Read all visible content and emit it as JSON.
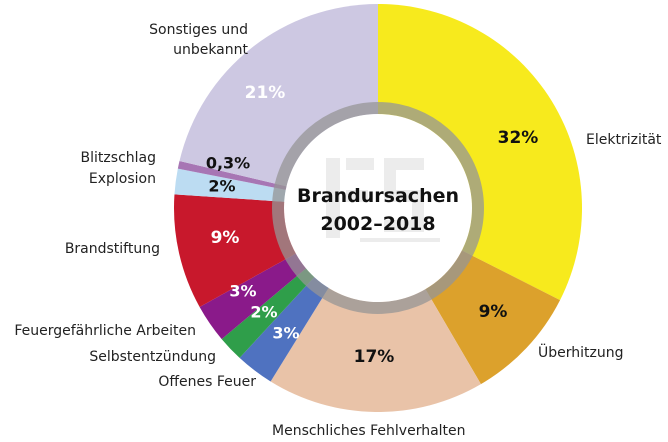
{
  "chart_data": {
    "type": "pie",
    "style": "donut",
    "title": "Brandursachen",
    "subtitle": "2002–2018",
    "start": "top",
    "direction": "clockwise",
    "slices": [
      {
        "label": "Elektrizität",
        "value": 32,
        "value_label": "32%",
        "color": "#f7ea1d",
        "text_color": "#111"
      },
      {
        "label": "Überhitzung",
        "value": 9,
        "value_label": "9%",
        "color": "#dca12c",
        "text_color": "#111"
      },
      {
        "label": "Menschliches Fehlverhalten",
        "value": 17,
        "value_label": "17%",
        "color": "#e9c3a8",
        "text_color": "#111"
      },
      {
        "label": "Offenes Feuer",
        "value": 3,
        "value_label": "3%",
        "color": "#4f72c0",
        "text_color": "#fff"
      },
      {
        "label": "Selbstentzündung",
        "value": 2,
        "value_label": "2%",
        "color": "#2f9e4a",
        "text_color": "#fff"
      },
      {
        "label": "Feuergefährliche Arbeiten",
        "value": 3,
        "value_label": "3%",
        "color": "#8a1a8a",
        "text_color": "#fff"
      },
      {
        "label": "Brandstiftung",
        "value": 9,
        "value_label": "9%",
        "color": "#c8182c",
        "text_color": "#fff"
      },
      {
        "label": "Explosion",
        "value": 2,
        "value_label": "2%",
        "color": "#bcdcf2",
        "text_color": "#111"
      },
      {
        "label": "Blitzschlag",
        "value": 0.3,
        "value_label": "0,3%",
        "color": "#a776b4",
        "text_color": "#111"
      },
      {
        "label": "Sonstiges und unbekannt",
        "value": 21,
        "value_label": "21%",
        "color": "#cdc8e2",
        "text_color": "#fff"
      }
    ],
    "watermark": "IFS"
  }
}
